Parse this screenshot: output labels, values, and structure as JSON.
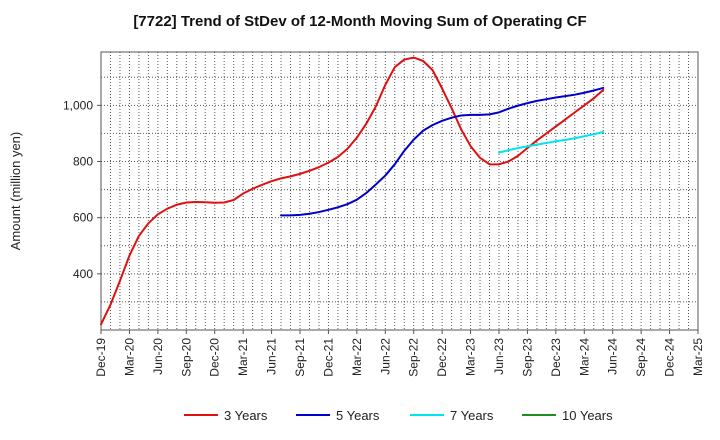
{
  "chart_data": {
    "type": "line",
    "title": "[7722]  Trend of StDev of 12-Month Moving Sum of Operating CF",
    "xlabel": "",
    "ylabel": "Amount (million yen)",
    "ylim": [
      200,
      1190
    ],
    "yticks": [
      400,
      600,
      800,
      1000
    ],
    "ytick_labels": [
      "400",
      "600",
      "800",
      "1,000"
    ],
    "x_start": "Dec-19",
    "x_end": "Mar-25",
    "xtick_labels": [
      "Dec-19",
      "Mar-20",
      "Jun-20",
      "Sep-20",
      "Dec-20",
      "Mar-21",
      "Jun-21",
      "Sep-21",
      "Dec-21",
      "Mar-22",
      "Jun-22",
      "Sep-22",
      "Dec-22",
      "Mar-23",
      "Jun-23",
      "Sep-23",
      "Dec-23",
      "Mar-24",
      "Jun-24",
      "Sep-24",
      "Dec-24",
      "Mar-25"
    ],
    "grid": true,
    "legend_position": "bottom",
    "series": [
      {
        "name": "3 Years",
        "color": "#dd1111",
        "start_index": 0,
        "values": [
          220,
          290,
          375,
          465,
          535,
          580,
          612,
          632,
          646,
          654,
          656,
          655,
          653,
          654,
          663,
          686,
          703,
          717,
          730,
          740,
          747,
          756,
          767,
          780,
          796,
          816,
          845,
          885,
          935,
          996,
          1073,
          1136,
          1163,
          1170,
          1158,
          1125,
          1060,
          990,
          915,
          855,
          813,
          790,
          790,
          800,
          820,
          848,
          875,
          900,
          925,
          950,
          975,
          1000,
          1025,
          1055
        ]
      },
      {
        "name": "5 Years",
        "color": "#0000cc",
        "start_index": 19,
        "values": [
          608,
          608,
          610,
          614,
          620,
          628,
          637,
          648,
          664,
          688,
          718,
          750,
          790,
          838,
          878,
          910,
          930,
          945,
          956,
          964,
          966,
          966,
          968,
          975,
          988,
          999,
          1008,
          1016,
          1022,
          1028,
          1033,
          1038,
          1045,
          1053,
          1062
        ]
      },
      {
        "name": "7 Years",
        "color": "#00e5ee",
        "start_index": 42,
        "values": [
          832,
          840,
          848,
          854,
          860,
          866,
          872,
          877,
          883,
          890,
          897,
          905
        ]
      },
      {
        "name": "10 Years",
        "color": "#228b22",
        "start_index": 0,
        "values": []
      }
    ]
  }
}
